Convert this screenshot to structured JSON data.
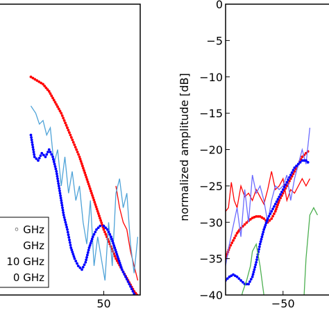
{
  "chart_data": [
    {
      "type": "line",
      "panel": "left",
      "xlabel": "",
      "ylabel": "",
      "x_ticks": [
        50
      ],
      "y_ticks": [],
      "xlim": [
        -48,
        80
      ],
      "ylim": [
        -40,
        0
      ],
      "grid": false,
      "legend": {
        "placement": "lower-left",
        "entries": [
          {
            "label": "◦ GHz",
            "color": "#ff0000"
          },
          {
            "label": "GHz",
            "color": "#4fa3d8"
          },
          {
            "label": "10 GHz",
            "color": "#0000ff"
          },
          {
            "label": "0 GHz",
            "color": "#0000ff"
          }
        ]
      },
      "series": [
        {
          "color": "#ff0000",
          "style": "dotted",
          "x": [
            -10,
            -5,
            0,
            5,
            10,
            15,
            20,
            25,
            30,
            35,
            40,
            45,
            50,
            55,
            60,
            65,
            70,
            75,
            80
          ],
          "y": [
            -10,
            -10.5,
            -11,
            -12,
            -13.5,
            -15,
            -17,
            -19,
            -21,
            -23.5,
            -26,
            -28.5,
            -31,
            -33,
            -35,
            -36.5,
            -38,
            -39.5,
            -40.5
          ]
        },
        {
          "color": "#ff0000",
          "style": "solid",
          "x": [
            60,
            63,
            66,
            69,
            72,
            75,
            78
          ],
          "y": [
            -25,
            -28,
            -30,
            -31,
            -34,
            -36,
            -38
          ]
        },
        {
          "color": "#4fa3d8",
          "style": "solid",
          "x": [
            -10,
            -6,
            -3,
            0,
            3,
            6,
            9,
            12,
            15,
            18,
            21,
            24,
            27,
            30,
            33,
            36,
            39,
            42,
            45,
            48,
            51,
            54,
            57,
            60,
            63,
            66,
            69,
            72,
            75,
            78
          ],
          "y": [
            -14,
            -15,
            -16.5,
            -16,
            -18,
            -17,
            -22,
            -20,
            -25,
            -21,
            -26,
            -23,
            -27,
            -25,
            -30,
            -33,
            -27,
            -36,
            -32,
            -35,
            -38,
            -30,
            -36,
            -26,
            -24,
            -28,
            -26,
            -33,
            -37,
            -32
          ]
        },
        {
          "color": "#0000ff",
          "style": "dotted",
          "x": [
            -10,
            -7,
            -4,
            -1,
            2,
            5,
            8,
            11,
            14,
            17,
            20,
            23,
            26,
            29,
            32,
            35,
            38,
            41,
            44,
            47,
            50,
            53,
            56,
            59,
            62,
            65,
            68,
            71,
            74,
            77,
            80
          ],
          "y": [
            -18,
            -21,
            -21.5,
            -20.5,
            -21,
            -20,
            -21,
            -23,
            -26,
            -29,
            -31,
            -33.5,
            -35,
            -36,
            -36.5,
            -35.5,
            -33.5,
            -32,
            -31,
            -30.5,
            -30.5,
            -31,
            -32,
            -33.5,
            -35,
            -36.5,
            -37.5,
            -38.5,
            -39.5,
            -40.5,
            -41.5
          ]
        }
      ]
    },
    {
      "type": "line",
      "panel": "right",
      "xlabel": "",
      "ylabel": "normalized amplitude [dB]",
      "x_ticks": [
        -50
      ],
      "y_ticks": [
        0,
        -5,
        -10,
        -15,
        -20,
        -25,
        -30,
        -35,
        -40
      ],
      "xlim": [
        -80,
        -26
      ],
      "ylim": [
        -40,
        0
      ],
      "grid": false,
      "series": [
        {
          "color": "#ff0000",
          "style": "dotted",
          "x": [
            -80,
            -78,
            -76,
            -74,
            -72,
            -70,
            -68,
            -66,
            -64,
            -62,
            -60,
            -58,
            -56,
            -54,
            -52,
            -50,
            -48,
            -46,
            -44,
            -42,
            -40,
            -38,
            -36
          ],
          "y": [
            -35,
            -33.5,
            -32.5,
            -31.5,
            -30.8,
            -30.3,
            -29.8,
            -29.4,
            -29.2,
            -29.2,
            -29.5,
            -30,
            -29.5,
            -28.5,
            -27,
            -26,
            -25,
            -24,
            -23,
            -22,
            -21,
            -20.5,
            -20
          ]
        },
        {
          "color": "#ff0000",
          "style": "solid",
          "x": [
            -80,
            -78.5,
            -77,
            -75.5,
            -74,
            -72,
            -70,
            -68,
            -66,
            -64,
            -62,
            -60,
            -58,
            -56,
            -54,
            -52,
            -50,
            -48,
            -46,
            -44,
            -42,
            -40,
            -38,
            -36
          ],
          "y": [
            -28.5,
            -28,
            -24.5,
            -27,
            -28,
            -25,
            -26.5,
            -26,
            -27,
            -25.5,
            -26.5,
            -27.5,
            -25.5,
            -23,
            -25.5,
            -25,
            -24,
            -27,
            -25.5,
            -26,
            -25,
            -24,
            -25,
            -24
          ]
        },
        {
          "color": "#6a6aff",
          "style": "solid",
          "x": [
            -80,
            -78,
            -76,
            -74,
            -72,
            -70,
            -68,
            -66,
            -64,
            -62,
            -60,
            -58,
            -56,
            -54,
            -52,
            -50,
            -48,
            -46,
            -44,
            -42,
            -40,
            -38,
            -36
          ],
          "y": [
            -36,
            -33,
            -30.5,
            -28,
            -32,
            -25.5,
            -30,
            -23.5,
            -26,
            -25,
            -27,
            -30,
            -27,
            -25,
            -25.5,
            -25,
            -23.5,
            -27,
            -24,
            -22,
            -20,
            -22,
            -17
          ]
        },
        {
          "color": "#0000ff",
          "style": "dotted",
          "x": [
            -80,
            -78,
            -76,
            -74,
            -72,
            -70,
            -68,
            -66,
            -64,
            -62,
            -60,
            -58,
            -56,
            -54,
            -52,
            -50,
            -48,
            -46,
            -44,
            -42,
            -40,
            -38,
            -36
          ],
          "y": [
            -38,
            -37.5,
            -37.2,
            -37.5,
            -38,
            -38.5,
            -38.5,
            -37.5,
            -35.5,
            -33,
            -31,
            -29.5,
            -28.5,
            -27.5,
            -26.5,
            -25.5,
            -24.5,
            -23.5,
            -22.5,
            -22,
            -21.5,
            -21.5,
            -22
          ]
        },
        {
          "color": "#4caf50",
          "style": "solid",
          "x": [
            -75,
            -73,
            -71,
            -69,
            -67,
            -66,
            -64,
            -62,
            -60,
            -58
          ],
          "y": [
            -45,
            -41.5,
            -39.5,
            -38,
            -36,
            -34,
            -33,
            -36,
            -40,
            -45
          ]
        },
        {
          "color": "#4caf50",
          "style": "solid",
          "x": [
            -40,
            -38,
            -36,
            -34,
            -32
          ],
          "y": [
            -45,
            -35,
            -29,
            -28,
            -29
          ]
        }
      ]
    }
  ]
}
